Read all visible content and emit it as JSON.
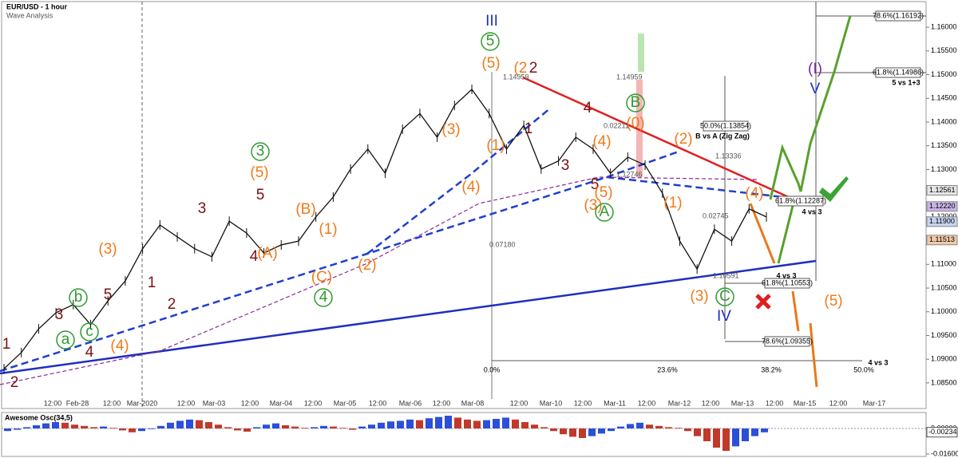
{
  "chart_data": {
    "type": "line",
    "title": "EUR/USD - 1 hour",
    "subtitle": "Wave Analysis",
    "color": "#111111",
    "values": [
      1.088,
      1.0914,
      1.0964,
      1.0998,
      1.1015,
      1.0973,
      1.1023,
      1.1065,
      1.1133,
      1.1183,
      1.1158,
      1.1133,
      1.1116,
      1.1191,
      1.1166,
      1.1124,
      1.1141,
      1.1149,
      1.12,
      1.1242,
      1.1301,
      1.1343,
      1.1292,
      1.1385,
      1.1418,
      1.1368,
      1.1435,
      1.1469,
      1.1418,
      1.1343,
      1.1393,
      1.1301,
      1.1318,
      1.1368,
      1.1343,
      1.1292,
      1.1326,
      1.1309,
      1.125,
      1.1149,
      1.109,
      1.1174,
      1.1149,
      1.1217,
      1.12
    ],
    "ylim": [
      1.0796,
      1.1654
    ],
    "yticks": [
      {
        "value": 1.085,
        "label": "1.08500"
      },
      {
        "value": 1.09,
        "label": "1.09000"
      },
      {
        "value": 1.095,
        "label": "1.09500"
      },
      {
        "value": 1.1,
        "label": "1.10000"
      },
      {
        "value": 1.105,
        "label": "1.10500"
      },
      {
        "value": 1.11,
        "label": "1.11000"
      },
      {
        "value": 1.115,
        "label": "1.11500"
      },
      {
        "value": 1.12,
        "label": "1.12000"
      },
      {
        "value": 1.125,
        "label": "1.12500"
      },
      {
        "value": 1.13,
        "label": "1.13000"
      },
      {
        "value": 1.135,
        "label": "1.13500"
      },
      {
        "value": 1.14,
        "label": "1.14000"
      },
      {
        "value": 1.145,
        "label": "1.14500"
      },
      {
        "value": 1.15,
        "label": "1.15000"
      },
      {
        "value": 1.155,
        "label": "1.15500"
      },
      {
        "value": 1.16,
        "label": "1.16000"
      }
    ],
    "price_labels": [
      {
        "value": 1.12561,
        "label": "1.12561",
        "color": "#e6e6e6"
      },
      {
        "value": 1.1222,
        "label": "1.12220",
        "color": "#c9b3e6"
      },
      {
        "value": 1.119,
        "label": "1.11900",
        "color": "#c6d3f0"
      },
      {
        "value": 1.11513,
        "label": "1.11513",
        "color": "#f0c9a8"
      }
    ],
    "time_labels": [
      "12:00",
      "Feb-28",
      "12:00",
      "Mar-2020",
      "12:00",
      "Mar-03",
      "12:00",
      "Mar-04",
      "12:00",
      "Mar-05",
      "12:00",
      "Mar-06",
      "12:00",
      "Mar-08",
      "12:00",
      "Mar-10",
      "12:00",
      "Mar-11",
      "12:00",
      "Mar-12",
      "12:00",
      "Mar-13",
      "12:00",
      "Mar-15",
      "12:00",
      "Mar-17"
    ],
    "annotation_groups": [
      {
        "color": "#7b1010",
        "labels": [
          "1",
          "2",
          "3",
          "4",
          "5",
          "1",
          "2",
          "3",
          "4",
          "5",
          "2",
          "1",
          "4",
          "3",
          "5"
        ]
      },
      {
        "color": "#f07a1a",
        "labels": [
          "(3)",
          "(4)",
          "(5)",
          "(B)",
          "(1)",
          "(A)",
          "(C)",
          "(2)",
          "(3)",
          "(4)",
          "(1)",
          "(5)",
          "(2",
          "(4)",
          "(0)",
          "(3)",
          "(5)",
          "(2)",
          "(1)",
          "(4)",
          "(3)",
          "(5)"
        ]
      },
      {
        "color": "#2e9a2e",
        "labels": [
          "a",
          "b",
          "c",
          "3",
          "4",
          "5",
          "B",
          "A",
          "C"
        ]
      },
      {
        "color": "#1f2fbf",
        "labels": [
          "III",
          "IV",
          "V"
        ]
      },
      {
        "color": "#7a2a9a",
        "labels": [
          "(I)"
        ]
      }
    ],
    "notes": [
      "B vs A (Zig Zag)",
      "4 vs 3",
      "4 vs 3",
      "5 vs 1+3",
      "4 vs 3",
      "0.0%",
      "23.6%",
      "38.2%",
      "50.0%"
    ],
    "fib_boxes": [
      "50.0%(1.13854)",
      "61.8%(1.12287)",
      "61.8%(1.10553)",
      "78.6%(1.09355)",
      "78.6%(1.16192)",
      "61.8%(1.14986)"
    ],
    "measures": [
      "1.14959",
      "1.14959",
      "0.02211",
      "1.12746",
      "1.13336",
      "0.02745",
      "1.10591",
      "0.07180"
    ],
    "oscillator": {
      "title": "Awesome Osc(34,5)",
      "values": [
        -0.0016,
        -0.0008,
        0.0008,
        0.002,
        0.0032,
        0.004,
        0.0036,
        0.0024,
        0.0016,
        0.0008,
        0.0012,
        0.0004,
        -0.0012,
        -0.0024,
        -0.0016,
        -0.0004,
        0.0016,
        0.0036,
        0.0048,
        0.0056,
        0.0052,
        0.004,
        0.0024,
        0.0008,
        -0.0012,
        -0.002,
        0.0008,
        0.0024,
        0.0032,
        0.002,
        0.0012,
        0.0004,
        0.0008,
        0.0016,
        0.0012,
        0.0004,
        -0.0008,
        0.0012,
        0.0024,
        0.0036,
        0.0044,
        0.0048,
        0.0056,
        0.0052,
        0.0064,
        0.0072,
        0.008,
        0.0068,
        0.0056,
        0.0048,
        0.0052,
        0.006,
        0.0068,
        0.0056,
        0.004,
        0.0024,
        0.0008,
        -0.0016,
        -0.0036,
        -0.0052,
        -0.006,
        -0.0048,
        -0.0032,
        -0.0016,
        0.0012,
        0.0028,
        0.0036,
        0.0024,
        0.0016,
        0.0008,
        0.0004,
        -0.0016,
        -0.0048,
        -0.008,
        -0.012,
        -0.014,
        -0.0112,
        -0.008,
        -0.0048,
        -0.0024
      ],
      "ylim": [
        -0.0185,
        0.0085
      ],
      "yticks": [
        {
          "value": 0,
          "label": "0.00000"
        },
        {
          "value": -0.016,
          "label": "-0.01600"
        }
      ],
      "current": {
        "value": -0.00234,
        "label": "-0.00234"
      },
      "up_color": "#2b4fd8",
      "down_color": "#c0392b"
    }
  }
}
